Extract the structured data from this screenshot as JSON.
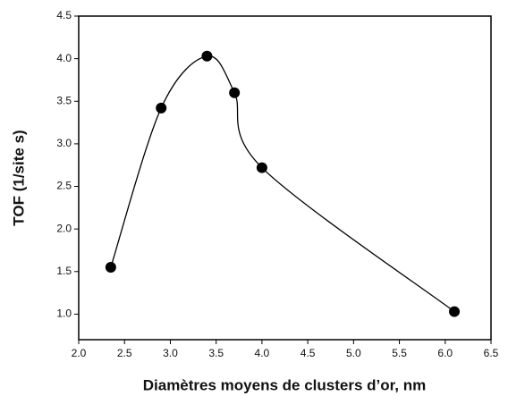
{
  "chart_data": {
    "type": "line",
    "x_label": "Diamètres moyens de clusters d’or, nm",
    "y_label": "TOF (1/site s)",
    "x": [
      2.35,
      2.9,
      3.4,
      3.7,
      4.0,
      6.1
    ],
    "values": [
      1.55,
      3.42,
      4.03,
      3.6,
      2.72,
      1.03
    ],
    "color": "#000000",
    "xlim": [
      2.0,
      6.5
    ],
    "ylim": [
      0.7,
      4.5
    ],
    "xticks": [
      {
        "value": 2,
        "label": "2.0"
      },
      2.5,
      {
        "value": 3,
        "label": "3.0"
      },
      3.5,
      {
        "value": 4,
        "label": "4.0"
      },
      4.5,
      {
        "value": 5,
        "label": "5.0"
      },
      5.5,
      {
        "value": 6,
        "label": "6.0"
      },
      6.5
    ],
    "yticks": [
      {
        "value": 1,
        "label": "1.0"
      },
      1.5,
      {
        "value": 2,
        "label": "2.0"
      },
      2.5,
      {
        "value": 3,
        "label": "3.0"
      },
      3.5,
      {
        "value": 4,
        "label": "4.0"
      },
      4.5
    ]
  }
}
